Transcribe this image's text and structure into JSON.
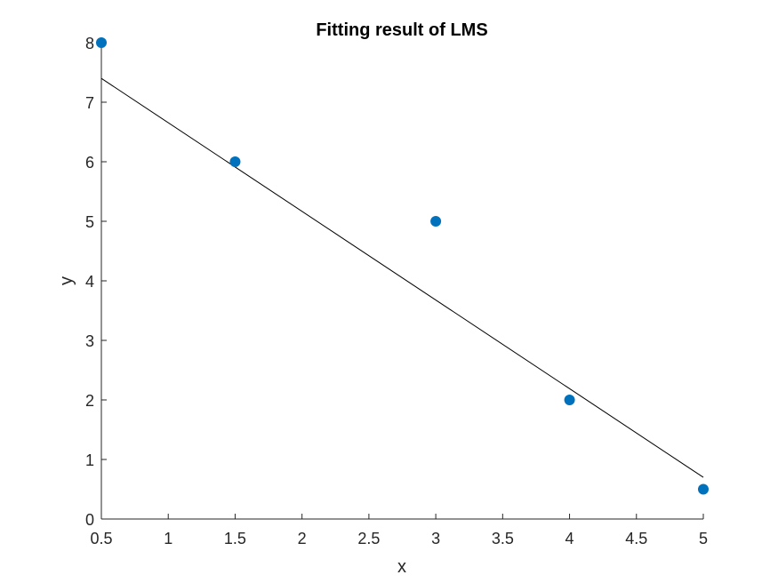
{
  "chart_data": {
    "type": "scatter",
    "title": "Fitting result of LMS",
    "xlabel": "x",
    "ylabel": "y",
    "xlim": [
      0.5,
      5
    ],
    "ylim": [
      0,
      8
    ],
    "xticks": [
      "0.5",
      "1",
      "1.5",
      "2",
      "2.5",
      "3",
      "3.5",
      "4",
      "4.5",
      "5"
    ],
    "yticks": [
      "0",
      "1",
      "2",
      "3",
      "4",
      "5",
      "6",
      "7",
      "8"
    ],
    "grid": false,
    "series": [
      {
        "type": "scatter",
        "color": "#0072BD",
        "points": [
          {
            "x": 0.5,
            "y": 8
          },
          {
            "x": 1.5,
            "y": 6
          },
          {
            "x": 3,
            "y": 5
          },
          {
            "x": 4,
            "y": 2
          },
          {
            "x": 5,
            "y": 0.5
          }
        ]
      },
      {
        "type": "line",
        "color": "#000000",
        "points": [
          {
            "x": 0.5,
            "y": 7.4
          },
          {
            "x": 5,
            "y": 0.7
          }
        ]
      }
    ]
  }
}
